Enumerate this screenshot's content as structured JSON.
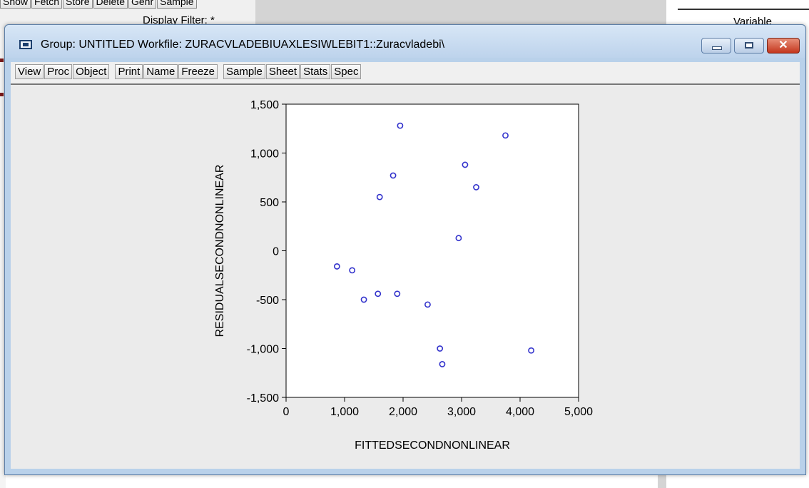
{
  "background": {
    "toolbar_buttons": [
      "Show",
      "Fetch",
      "Store",
      "Delete",
      "Genr",
      "Sample"
    ],
    "display_filter": "Display Filter: *",
    "right_column_label": "Variable"
  },
  "window": {
    "title": "Group: UNTITLED   Workfile: ZURACVLADEBIUAXLESIWLEBIT1::Zuracvladebi\\",
    "controls": {
      "minimize": "minimize",
      "maximize": "maximize",
      "close": "✕"
    },
    "toolbar": [
      "View",
      "Proc",
      "Object",
      "Print",
      "Name",
      "Freeze",
      "Sample",
      "Sheet",
      "Stats",
      "Spec"
    ]
  },
  "chart_data": {
    "type": "scatter",
    "xlabel": "FITTEDSECONDNONLINEAR",
    "ylabel": "RESIDUALSECONDNONLINEAR",
    "xlim": [
      0,
      5000
    ],
    "ylim": [
      -1500,
      1500
    ],
    "xticks": [
      0,
      1000,
      2000,
      3000,
      4000,
      5000
    ],
    "xtick_labels": [
      "0",
      "1,000",
      "2,000",
      "3,000",
      "4,000",
      "5,000"
    ],
    "yticks": [
      1500,
      1000,
      500,
      0,
      -500,
      -1000,
      -1500
    ],
    "ytick_labels": [
      "1,500",
      "1,000",
      "500",
      "0",
      "-500",
      "-1,000",
      "-1,500"
    ],
    "marker_color": "#3333cc",
    "points": [
      {
        "x": 870,
        "y": -160
      },
      {
        "x": 1130,
        "y": -200
      },
      {
        "x": 1330,
        "y": -500
      },
      {
        "x": 1570,
        "y": -440
      },
      {
        "x": 1600,
        "y": 550
      },
      {
        "x": 1830,
        "y": 770
      },
      {
        "x": 1900,
        "y": -440
      },
      {
        "x": 1950,
        "y": 1280
      },
      {
        "x": 2420,
        "y": -550
      },
      {
        "x": 2630,
        "y": -1000
      },
      {
        "x": 2670,
        "y": -1160
      },
      {
        "x": 2950,
        "y": 130
      },
      {
        "x": 3060,
        "y": 880
      },
      {
        "x": 3250,
        "y": 650
      },
      {
        "x": 3750,
        "y": 1180
      },
      {
        "x": 4190,
        "y": -1020
      }
    ]
  }
}
